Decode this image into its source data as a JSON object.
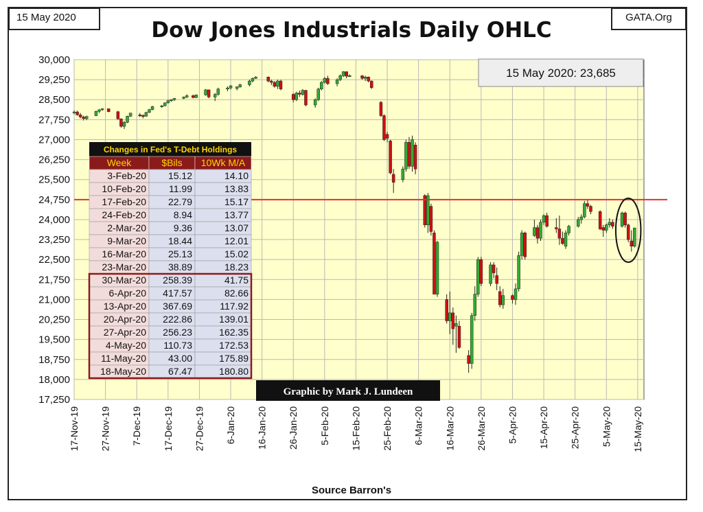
{
  "header": {
    "date_label": "15 May 2020",
    "site_label": "GATA.Org",
    "title": "Dow Jones Industrials Daily OHLC",
    "source": "Source Barron's",
    "callout": "15 May 2020: 23,685",
    "credit": "Graphic by Mark J. Lundeen"
  },
  "colors": {
    "plot_background": "#ffffcc",
    "grid": "#b8b8b8",
    "up_candle": "#33aa33",
    "down_candle": "#cc1111",
    "reference_line": "#e03030",
    "table_header_bg": "#111111",
    "table_header_text": "#ffd700",
    "table_col_header_bg": "#8b1a1a",
    "table_row_a": "#f2dcdb",
    "table_row_b": "#dcdfee",
    "table_border_highlight": "#8b1a1a"
  },
  "chart_data": {
    "type": "candlestick",
    "title": "Dow Jones Industrials Daily OHLC",
    "xlabel": "Source Barron's",
    "ylabel": "",
    "ylim": [
      17250,
      30000
    ],
    "y_ticks": [
      "17,250",
      "18,000",
      "18,750",
      "19,500",
      "20,250",
      "21,000",
      "21,750",
      "22,500",
      "23,250",
      "24,000",
      "24,750",
      "25,500",
      "26,250",
      "27,000",
      "27,750",
      "28,500",
      "29,250",
      "30,000"
    ],
    "x_ticks": [
      "17-Nov-19",
      "27-Nov-19",
      "7-Dec-19",
      "17-Dec-19",
      "27-Dec-19",
      "6-Jan-20",
      "16-Jan-20",
      "26-Jan-20",
      "5-Feb-20",
      "15-Feb-20",
      "25-Feb-20",
      "6-Mar-20",
      "16-Mar-20",
      "26-Mar-20",
      "5-Apr-20",
      "15-Apr-20",
      "25-Apr-20",
      "5-May-20",
      "15-May-20"
    ],
    "grid": true,
    "reference_line": 24750,
    "series": [
      {
        "x": 0,
        "o": 28010,
        "h": 28100,
        "l": 27950,
        "c": 28040
      },
      {
        "x": 1,
        "o": 28040,
        "h": 28090,
        "l": 27900,
        "c": 27930
      },
      {
        "x": 2,
        "o": 27930,
        "h": 28000,
        "l": 27800,
        "c": 27850
      },
      {
        "x": 3,
        "o": 27850,
        "h": 27900,
        "l": 27720,
        "c": 27790
      },
      {
        "x": 4,
        "o": 27790,
        "h": 27900,
        "l": 27730,
        "c": 27870
      },
      {
        "x": 7,
        "o": 27900,
        "h": 28090,
        "l": 27880,
        "c": 28060
      },
      {
        "x": 8,
        "o": 28060,
        "h": 28150,
        "l": 28000,
        "c": 28120
      },
      {
        "x": 9,
        "o": 28120,
        "h": 28180,
        "l": 28080,
        "c": 28160
      },
      {
        "x": 11,
        "o": 28160,
        "h": 28170,
        "l": 28030,
        "c": 28050
      },
      {
        "x": 14,
        "o": 28050,
        "h": 28080,
        "l": 27750,
        "c": 27780
      },
      {
        "x": 15,
        "o": 27780,
        "h": 27800,
        "l": 27450,
        "c": 27500
      },
      {
        "x": 16,
        "o": 27500,
        "h": 27700,
        "l": 27400,
        "c": 27650
      },
      {
        "x": 17,
        "o": 27650,
        "h": 27900,
        "l": 27620,
        "c": 27880
      },
      {
        "x": 18,
        "o": 27880,
        "h": 28000,
        "l": 27850,
        "c": 28000
      },
      {
        "x": 21,
        "o": 27930,
        "h": 28000,
        "l": 27850,
        "c": 27910
      },
      {
        "x": 22,
        "o": 27910,
        "h": 27950,
        "l": 27800,
        "c": 27880
      },
      {
        "x": 23,
        "o": 27880,
        "h": 28050,
        "l": 27860,
        "c": 28020
      },
      {
        "x": 24,
        "o": 28020,
        "h": 28150,
        "l": 28000,
        "c": 28130
      },
      {
        "x": 25,
        "o": 28130,
        "h": 28270,
        "l": 28100,
        "c": 28240
      },
      {
        "x": 28,
        "o": 28240,
        "h": 28300,
        "l": 28200,
        "c": 28270
      },
      {
        "x": 29,
        "o": 28270,
        "h": 28400,
        "l": 28250,
        "c": 28380
      },
      {
        "x": 30,
        "o": 28380,
        "h": 28500,
        "l": 28350,
        "c": 28460
      },
      {
        "x": 31,
        "o": 28460,
        "h": 28520,
        "l": 28420,
        "c": 28500
      },
      {
        "x": 32,
        "o": 28500,
        "h": 28560,
        "l": 28450,
        "c": 28550
      },
      {
        "x": 35,
        "o": 28550,
        "h": 28620,
        "l": 28520,
        "c": 28600
      },
      {
        "x": 36,
        "o": 28600,
        "h": 28700,
        "l": 28560,
        "c": 28650
      },
      {
        "x": 38,
        "o": 28650,
        "h": 28690,
        "l": 28550,
        "c": 28580
      },
      {
        "x": 39,
        "o": 28580,
        "h": 28700,
        "l": 28560,
        "c": 28680
      },
      {
        "x": 42,
        "o": 28680,
        "h": 28900,
        "l": 28650,
        "c": 28870
      },
      {
        "x": 43,
        "o": 28870,
        "h": 28880,
        "l": 28550,
        "c": 28600
      },
      {
        "x": 45,
        "o": 28600,
        "h": 28750,
        "l": 28450,
        "c": 28700
      },
      {
        "x": 46,
        "o": 28700,
        "h": 28950,
        "l": 28650,
        "c": 28900
      },
      {
        "x": 49,
        "o": 28900,
        "h": 29000,
        "l": 28820,
        "c": 28940
      },
      {
        "x": 50,
        "o": 28940,
        "h": 29050,
        "l": 28880,
        "c": 29020
      },
      {
        "x": 52,
        "o": 28920,
        "h": 29000,
        "l": 28850,
        "c": 28980
      },
      {
        "x": 53,
        "o": 28980,
        "h": 29100,
        "l": 28950,
        "c": 29060
      },
      {
        "x": 56,
        "o": 29060,
        "h": 29250,
        "l": 29000,
        "c": 29200
      },
      {
        "x": 57,
        "o": 29200,
        "h": 29330,
        "l": 29150,
        "c": 29300
      },
      {
        "x": 58,
        "o": 29300,
        "h": 29380,
        "l": 29280,
        "c": 29350
      },
      {
        "x": 62,
        "o": 29350,
        "h": 29370,
        "l": 29150,
        "c": 29200
      },
      {
        "x": 63,
        "o": 29200,
        "h": 29250,
        "l": 29050,
        "c": 29150
      },
      {
        "x": 64,
        "o": 29150,
        "h": 29200,
        "l": 28950,
        "c": 29000
      },
      {
        "x": 65,
        "o": 29000,
        "h": 29250,
        "l": 28900,
        "c": 29200
      },
      {
        "x": 66,
        "o": 29200,
        "h": 29250,
        "l": 28850,
        "c": 28900
      },
      {
        "x": 70,
        "o": 28700,
        "h": 28750,
        "l": 28400,
        "c": 28500
      },
      {
        "x": 71,
        "o": 28500,
        "h": 28800,
        "l": 28450,
        "c": 28750
      },
      {
        "x": 72,
        "o": 28750,
        "h": 28850,
        "l": 28600,
        "c": 28700
      },
      {
        "x": 73,
        "o": 28700,
        "h": 28900,
        "l": 28650,
        "c": 28850
      },
      {
        "x": 74,
        "o": 28850,
        "h": 28870,
        "l": 28250,
        "c": 28300
      },
      {
        "x": 77,
        "o": 28300,
        "h": 28550,
        "l": 28200,
        "c": 28500
      },
      {
        "x": 78,
        "o": 28500,
        "h": 28950,
        "l": 28450,
        "c": 28900
      },
      {
        "x": 79,
        "o": 28900,
        "h": 29200,
        "l": 28850,
        "c": 29150
      },
      {
        "x": 80,
        "o": 29150,
        "h": 29350,
        "l": 29100,
        "c": 29300
      },
      {
        "x": 81,
        "o": 29300,
        "h": 29400,
        "l": 29050,
        "c": 29100
      },
      {
        "x": 84,
        "o": 29100,
        "h": 29300,
        "l": 29000,
        "c": 29250
      },
      {
        "x": 85,
        "o": 29250,
        "h": 29450,
        "l": 29200,
        "c": 29400
      },
      {
        "x": 86,
        "o": 29400,
        "h": 29570,
        "l": 29350,
        "c": 29550
      },
      {
        "x": 87,
        "o": 29550,
        "h": 29560,
        "l": 29300,
        "c": 29380
      },
      {
        "x": 88,
        "o": 29380,
        "h": 29450,
        "l": 29350,
        "c": 29400
      },
      {
        "x": 92,
        "o": 29400,
        "h": 29420,
        "l": 29250,
        "c": 29300
      },
      {
        "x": 93,
        "o": 29300,
        "h": 29400,
        "l": 29200,
        "c": 29350
      },
      {
        "x": 94,
        "o": 29350,
        "h": 29370,
        "l": 29150,
        "c": 29200
      },
      {
        "x": 95,
        "o": 29200,
        "h": 29220,
        "l": 28900,
        "c": 28950
      },
      {
        "x": 98,
        "o": 28400,
        "h": 28450,
        "l": 27850,
        "c": 27900
      },
      {
        "x": 99,
        "o": 27900,
        "h": 27950,
        "l": 26950,
        "c": 27000
      },
      {
        "x": 100,
        "o": 27200,
        "h": 27300,
        "l": 26900,
        "c": 27050
      },
      {
        "x": 101,
        "o": 26950,
        "h": 27000,
        "l": 25700,
        "c": 25750
      },
      {
        "x": 102,
        "o": 25700,
        "h": 25900,
        "l": 25000,
        "c": 25400
      },
      {
        "x": 105,
        "o": 25500,
        "h": 26000,
        "l": 25400,
        "c": 25900
      },
      {
        "x": 106,
        "o": 25900,
        "h": 27000,
        "l": 25800,
        "c": 26900
      },
      {
        "x": 107,
        "o": 26900,
        "h": 27100,
        "l": 25900,
        "c": 26000
      },
      {
        "x": 108,
        "o": 26000,
        "h": 27150,
        "l": 25800,
        "c": 27000
      },
      {
        "x": 109,
        "o": 26800,
        "h": 26900,
        "l": 25700,
        "c": 25900
      },
      {
        "x": 112,
        "o": 24900,
        "h": 24950,
        "l": 23700,
        "c": 23800
      },
      {
        "x": 113,
        "o": 23800,
        "h": 25000,
        "l": 23500,
        "c": 24900
      },
      {
        "x": 114,
        "o": 24500,
        "h": 24600,
        "l": 23400,
        "c": 23550
      },
      {
        "x": 115,
        "o": 23500,
        "h": 23600,
        "l": 21200,
        "c": 21200
      },
      {
        "x": 116,
        "o": 21200,
        "h": 23200,
        "l": 21100,
        "c": 23150
      },
      {
        "x": 119,
        "o": 21000,
        "h": 21200,
        "l": 20100,
        "c": 20200
      },
      {
        "x": 120,
        "o": 20200,
        "h": 21300,
        "l": 19700,
        "c": 20500
      },
      {
        "x": 121,
        "o": 20500,
        "h": 20700,
        "l": 19300,
        "c": 19900
      },
      {
        "x": 122,
        "o": 20000,
        "h": 20400,
        "l": 19000,
        "c": 20100
      },
      {
        "x": 123,
        "o": 20000,
        "h": 20200,
        "l": 19150,
        "c": 19200
      },
      {
        "x": 126,
        "o": 18900,
        "h": 19100,
        "l": 18250,
        "c": 18600
      },
      {
        "x": 127,
        "o": 18600,
        "h": 20500,
        "l": 18400,
        "c": 20400
      },
      {
        "x": 128,
        "o": 20400,
        "h": 21500,
        "l": 20200,
        "c": 21200
      },
      {
        "x": 129,
        "o": 21200,
        "h": 22600,
        "l": 21100,
        "c": 22500
      },
      {
        "x": 130,
        "o": 22500,
        "h": 22600,
        "l": 21500,
        "c": 21600
      },
      {
        "x": 133,
        "o": 21600,
        "h": 22400,
        "l": 21500,
        "c": 22300
      },
      {
        "x": 134,
        "o": 22300,
        "h": 22400,
        "l": 21800,
        "c": 22000
      },
      {
        "x": 135,
        "o": 21900,
        "h": 22200,
        "l": 21350,
        "c": 21600
      },
      {
        "x": 136,
        "o": 21300,
        "h": 21500,
        "l": 20700,
        "c": 20800
      },
      {
        "x": 137,
        "o": 20800,
        "h": 21400,
        "l": 20650,
        "c": 21150
      },
      {
        "x": 140,
        "o": 21150,
        "h": 21200,
        "l": 20850,
        "c": 21000
      },
      {
        "x": 141,
        "o": 21000,
        "h": 21600,
        "l": 20800,
        "c": 21400
      },
      {
        "x": 142,
        "o": 21400,
        "h": 22800,
        "l": 21300,
        "c": 22650
      },
      {
        "x": 143,
        "o": 22650,
        "h": 23600,
        "l": 22500,
        "c": 23500
      },
      {
        "x": 144,
        "o": 23500,
        "h": 23550,
        "l": 22500,
        "c": 22600
      },
      {
        "x": 147,
        "o": 23400,
        "h": 24000,
        "l": 23350,
        "c": 23700
      },
      {
        "x": 148,
        "o": 23700,
        "h": 23800,
        "l": 23100,
        "c": 23300
      },
      {
        "x": 149,
        "o": 23300,
        "h": 24000,
        "l": 23200,
        "c": 23900
      },
      {
        "x": 150,
        "o": 23900,
        "h": 24200,
        "l": 23800,
        "c": 24150
      },
      {
        "x": 151,
        "o": 24150,
        "h": 24260,
        "l": 23700,
        "c": 23750
      },
      {
        "x": 154,
        "o": 23700,
        "h": 24050,
        "l": 23500,
        "c": 23650
      },
      {
        "x": 155,
        "o": 23650,
        "h": 24150,
        "l": 23050,
        "c": 23300
      },
      {
        "x": 156,
        "o": 23300,
        "h": 23550,
        "l": 23050,
        "c": 23100
      },
      {
        "x": 157,
        "o": 23000,
        "h": 23600,
        "l": 22900,
        "c": 23500
      },
      {
        "x": 158,
        "o": 23500,
        "h": 23800,
        "l": 23400,
        "c": 23750
      },
      {
        "x": 161,
        "o": 23750,
        "h": 24100,
        "l": 23700,
        "c": 24000
      },
      {
        "x": 162,
        "o": 24000,
        "h": 24200,
        "l": 23850,
        "c": 24100
      },
      {
        "x": 163,
        "o": 24100,
        "h": 24700,
        "l": 24050,
        "c": 24600
      },
      {
        "x": 164,
        "o": 24600,
        "h": 24750,
        "l": 24400,
        "c": 24500
      },
      {
        "x": 165,
        "o": 24500,
        "h": 24550,
        "l": 24200,
        "c": 24300
      },
      {
        "x": 168,
        "o": 24300,
        "h": 24350,
        "l": 23600,
        "c": 23650
      },
      {
        "x": 169,
        "o": 23700,
        "h": 23800,
        "l": 23350,
        "c": 23600
      },
      {
        "x": 170,
        "o": 23600,
        "h": 23850,
        "l": 23500,
        "c": 23800
      },
      {
        "x": 171,
        "o": 23800,
        "h": 24050,
        "l": 23700,
        "c": 23900
      },
      {
        "x": 172,
        "o": 23900,
        "h": 24000,
        "l": 23650,
        "c": 23750
      },
      {
        "x": 175,
        "o": 23750,
        "h": 24300,
        "l": 23700,
        "c": 24250
      },
      {
        "x": 176,
        "o": 24250,
        "h": 24300,
        "l": 23700,
        "c": 23800
      },
      {
        "x": 177,
        "o": 23800,
        "h": 23850,
        "l": 23150,
        "c": 23250
      },
      {
        "x": 178,
        "o": 23200,
        "h": 23600,
        "l": 22800,
        "c": 23000
      },
      {
        "x": 179,
        "o": 23000,
        "h": 23700,
        "l": 22950,
        "c": 23685
      }
    ],
    "x_span": [
      0,
      182
    ],
    "ellipse_highlight": {
      "x_center": 177,
      "y_center": 23600,
      "x_half_days": 4,
      "y_half": 1200
    },
    "table": {
      "title": "Changes in Fed's T-Debt Holdings",
      "columns": [
        "Week",
        "$Bils",
        "10Wk M/A"
      ],
      "rows": [
        [
          "3-Feb-20",
          "15.12",
          "14.10"
        ],
        [
          "10-Feb-20",
          "11.99",
          "13.83"
        ],
        [
          "17-Feb-20",
          "22.79",
          "15.17"
        ],
        [
          "24-Feb-20",
          "8.94",
          "13.77"
        ],
        [
          "2-Mar-20",
          "9.36",
          "13.07"
        ],
        [
          "9-Mar-20",
          "18.44",
          "12.01"
        ],
        [
          "16-Mar-20",
          "25.13",
          "15.02"
        ],
        [
          "23-Mar-20",
          "38.89",
          "18.23"
        ],
        [
          "30-Mar-20",
          "258.39",
          "41.75"
        ],
        [
          "6-Apr-20",
          "417.57",
          "82.66"
        ],
        [
          "13-Apr-20",
          "367.69",
          "117.92"
        ],
        [
          "20-Apr-20",
          "222.86",
          "139.01"
        ],
        [
          "27-Apr-20",
          "256.23",
          "162.35"
        ],
        [
          "4-May-20",
          "110.73",
          "172.53"
        ],
        [
          "11-May-20",
          "43.00",
          "175.89"
        ],
        [
          "18-May-20",
          "67.47",
          "180.80"
        ]
      ],
      "highlight_from_row": 8
    }
  }
}
